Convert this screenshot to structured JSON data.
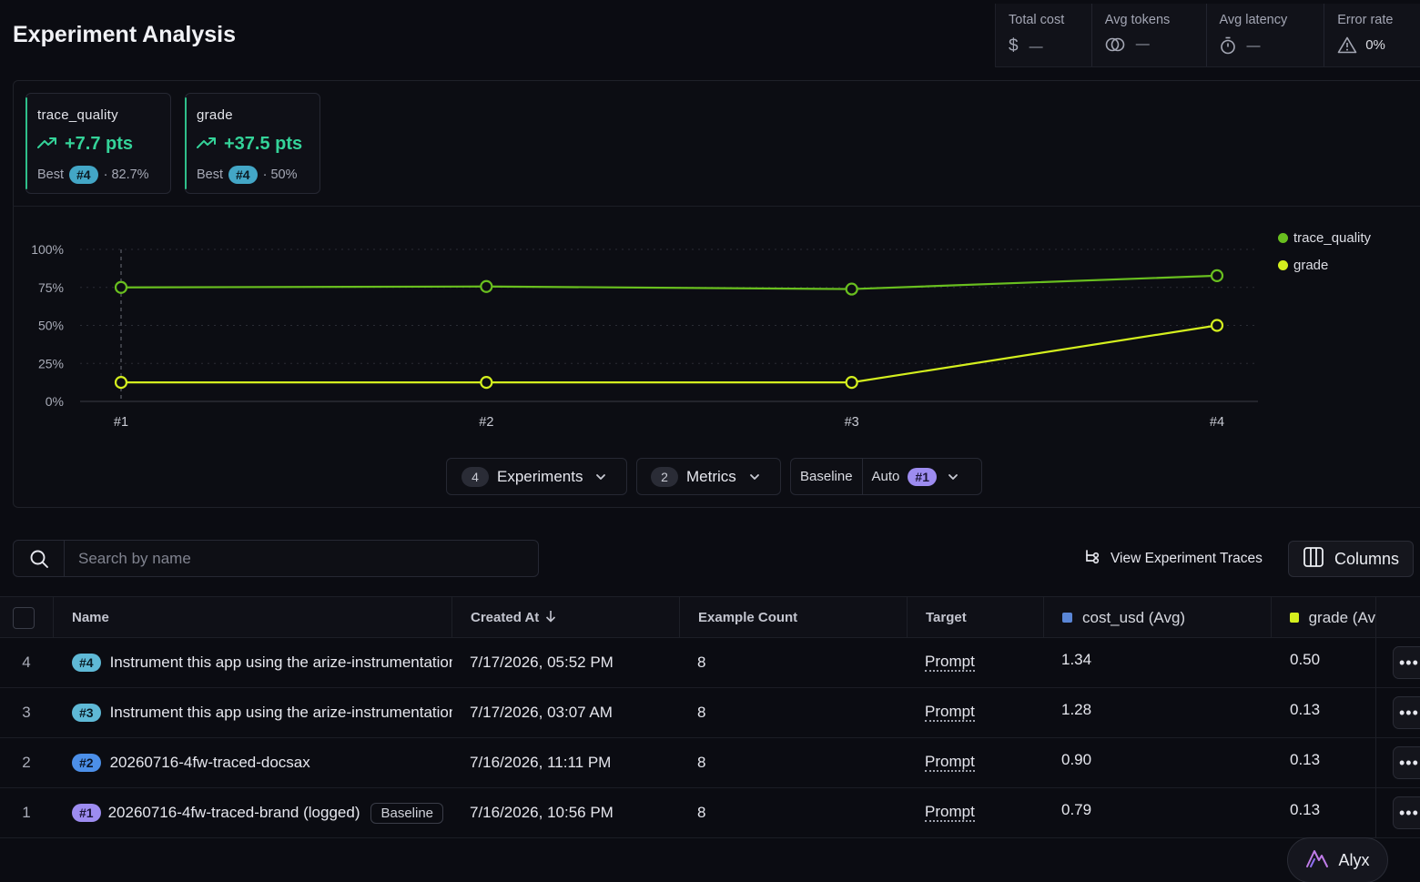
{
  "page": {
    "title": "Experiment Analysis"
  },
  "stats": [
    {
      "label": "Total cost",
      "value": "—",
      "icon": "dollar-icon"
    },
    {
      "label": "Avg tokens",
      "value": "—",
      "icon": "tokens-icon"
    },
    {
      "label": "Avg latency",
      "value": "—",
      "icon": "stopwatch-icon"
    },
    {
      "label": "Error rate",
      "value": "0%",
      "icon": "warning-icon"
    }
  ],
  "metric_cards": [
    {
      "name": "trace_quality",
      "delta": "+7.7 pts",
      "best_label": "Best",
      "best_exp": "#4",
      "best_value": "· 82.7%"
    },
    {
      "name": "grade",
      "delta": "+37.5 pts",
      "best_label": "Best",
      "best_exp": "#4",
      "best_value": "· 50%"
    }
  ],
  "chart_data": {
    "type": "line",
    "categories": [
      "#1",
      "#2",
      "#3",
      "#4"
    ],
    "series": [
      {
        "name": "trace_quality",
        "values": [
          75,
          75.6,
          73.9,
          82.7
        ],
        "color": "#69bf1f"
      },
      {
        "name": "grade",
        "values": [
          12.5,
          12.5,
          12.5,
          50
        ],
        "color": "#d4ef1e"
      }
    ],
    "y_ticks": [
      "0%",
      "25%",
      "50%",
      "75%",
      "100%"
    ],
    "ylim": [
      0,
      100
    ],
    "grid": true,
    "legend": "top-right",
    "baseline_marker": "#1"
  },
  "controls": {
    "experiments_count": "4",
    "experiments_label": "Experiments",
    "metrics_count": "2",
    "metrics_label": "Metrics",
    "baseline_label": "Baseline",
    "baseline_mode": "Auto",
    "baseline_exp": "#1"
  },
  "toolbar": {
    "search_placeholder": "Search by name",
    "view_traces_label": "View Experiment Traces",
    "columns_label": "Columns"
  },
  "table": {
    "headers": {
      "name": "Name",
      "created_at": "Created At",
      "example_count": "Example Count",
      "target": "Target",
      "cost": "cost_usd (Avg)",
      "grade": "grade (Av"
    },
    "rows": [
      {
        "idx": "4",
        "tag": "#4",
        "name": "Instrument this app using the arize-instrumentation",
        "created_at": "7/17/2026, 05:52 PM",
        "count": "8",
        "target": "Prompt",
        "cost": "1.34",
        "grade": "0.50"
      },
      {
        "idx": "3",
        "tag": "#3",
        "name": "Instrument this app using the arize-instrumentation",
        "created_at": "7/17/2026, 03:07 AM",
        "count": "8",
        "target": "Prompt",
        "cost": "1.28",
        "grade": "0.13"
      },
      {
        "idx": "2",
        "tag": "#2",
        "name": "20260716-4fw-traced-docsax",
        "created_at": "7/16/2026, 11:11 PM",
        "count": "8",
        "target": "Prompt",
        "cost": "0.90",
        "grade": "0.13"
      },
      {
        "idx": "1",
        "tag": "#1",
        "name": "20260716-4fw-traced-brand (logged)",
        "badge": "Baseline",
        "created_at": "7/16/2026, 10:56 PM",
        "count": "8",
        "target": "Prompt",
        "cost": "0.79",
        "grade": "0.13"
      }
    ]
  },
  "colors": {
    "cost_series": "#5a86d6",
    "grade_series": "#d4ef1e"
  },
  "assistant": {
    "label": "Alyx"
  }
}
